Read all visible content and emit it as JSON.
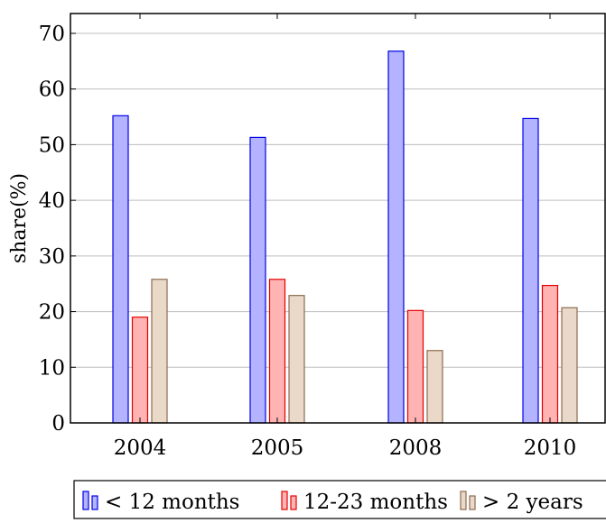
{
  "chart_data": {
    "type": "bar",
    "title": "",
    "xlabel": "",
    "ylabel": "share(%)",
    "categories": [
      "2004",
      "2005",
      "2008",
      "2010"
    ],
    "series": [
      {
        "name": "< 12 months",
        "values": [
          55.2,
          51.3,
          66.8,
          54.7
        ],
        "fill": "#b3b3ff",
        "stroke": "#0000e6"
      },
      {
        "name": "12-23 months",
        "values": [
          19.0,
          25.8,
          20.2,
          24.7
        ],
        "fill": "#ffb3b3",
        "stroke": "#e60000"
      },
      {
        "name": "> 2 years",
        "values": [
          25.8,
          22.9,
          13.0,
          20.7
        ],
        "fill": "#ead9c8",
        "stroke": "#8c6b4f"
      }
    ],
    "ylim": [
      0,
      70
    ],
    "yticks": [
      0,
      10,
      20,
      30,
      40,
      50,
      60,
      70
    ],
    "grid": "horizontal",
    "legend_position": "bottom"
  }
}
